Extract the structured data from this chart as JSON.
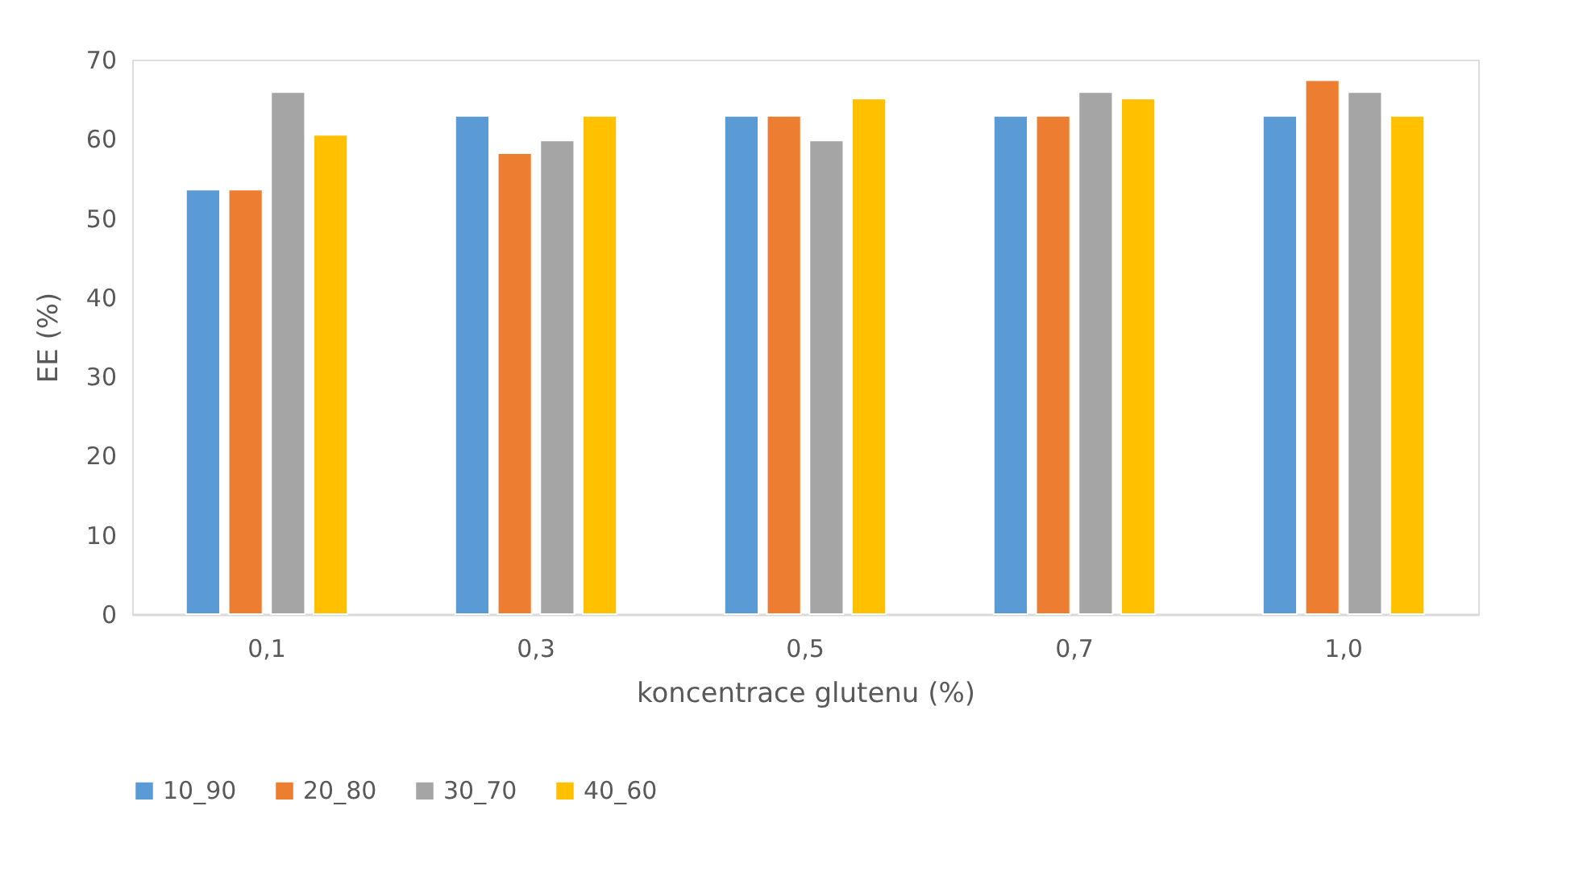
{
  "chart_data": {
    "type": "bar",
    "xlabel": "koncentrace glutenu (%)",
    "ylabel": "EE (%)",
    "categories": [
      "0,1",
      "0,3",
      "0,5",
      "0,7",
      "1,0"
    ],
    "series": [
      {
        "name": "10_90",
        "color": "#5b9bd5",
        "values": [
          53.6,
          62.9,
          62.9,
          62.9,
          62.9
        ]
      },
      {
        "name": "20_80",
        "color": "#ed7d31",
        "values": [
          53.6,
          58.2,
          62.9,
          62.9,
          67.4
        ]
      },
      {
        "name": "30_70",
        "color": "#a5a5a5",
        "values": [
          65.9,
          59.8,
          59.8,
          65.9,
          65.9
        ]
      },
      {
        "name": "40_60",
        "color": "#ffc000",
        "values": [
          60.5,
          62.9,
          65.1,
          65.1,
          62.9
        ]
      }
    ],
    "ylim": [
      0,
      70
    ],
    "yticks": [
      0,
      10,
      20,
      30,
      40,
      50,
      60,
      70
    ],
    "grid": false,
    "legend": "bottom"
  }
}
